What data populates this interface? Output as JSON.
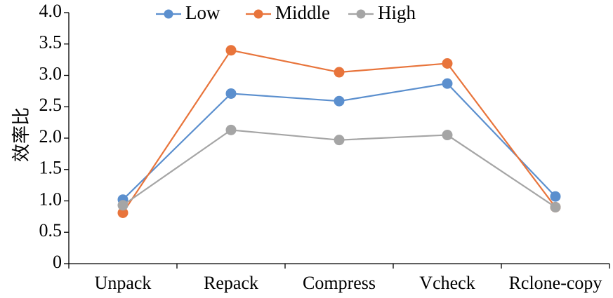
{
  "chart_data": {
    "type": "line",
    "ylabel": "效率比",
    "xlabel": "",
    "categories": [
      "Unpack",
      "Repack",
      "Compress",
      "Vcheck",
      "Rclone-copy"
    ],
    "ylim": [
      0,
      4.0
    ],
    "yticks": [
      "0",
      "0.5",
      "1.0",
      "1.5",
      "2.0",
      "2.5",
      "3.0",
      "3.5",
      "4.0"
    ],
    "grid": false,
    "legend_position": "top",
    "series": [
      {
        "name": "Low",
        "color": "#5b8fce",
        "values": [
          1.02,
          2.71,
          2.59,
          2.87,
          1.07
        ]
      },
      {
        "name": "Middle",
        "color": "#e8743b",
        "values": [
          0.81,
          3.4,
          3.05,
          3.19,
          0.9
        ]
      },
      {
        "name": "High",
        "color": "#a5a5a5",
        "values": [
          0.93,
          2.13,
          1.97,
          2.05,
          0.9
        ]
      }
    ]
  }
}
